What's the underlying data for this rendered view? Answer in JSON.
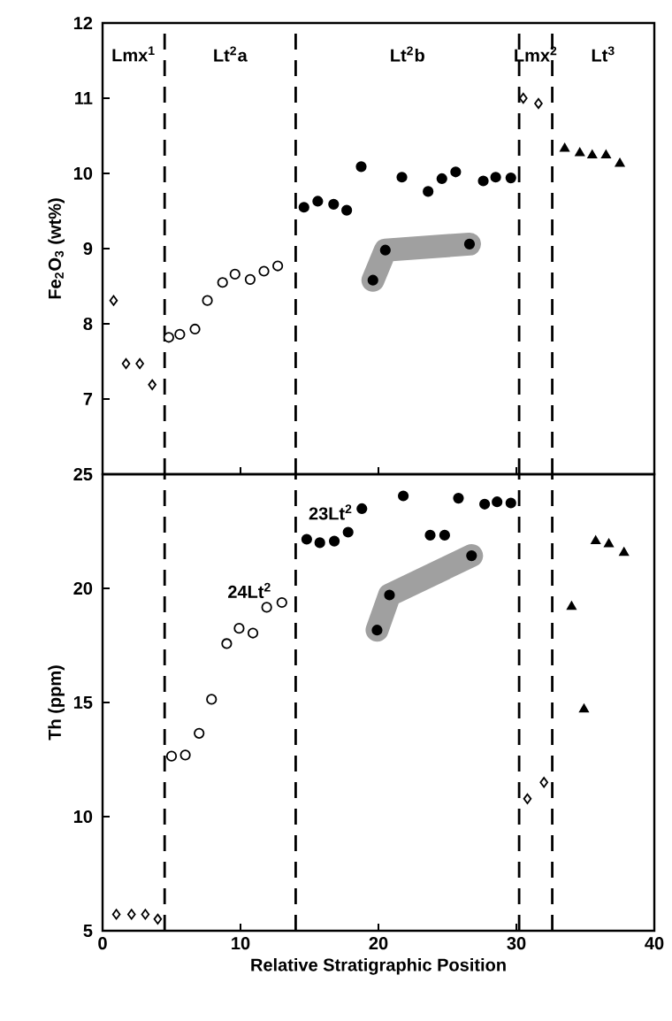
{
  "chart_data": [
    {
      "type": "scatter",
      "ylabel": "Fe$_{2}$O$_{3}$ (wt%)",
      "xlim": [
        0,
        40
      ],
      "xticks": [
        0,
        10,
        20,
        30,
        40
      ],
      "ylim": [
        6,
        12
      ],
      "yticks": [
        7,
        8,
        9,
        10,
        11,
        12
      ],
      "tick_labels": "y",
      "series": [
        {
          "color": "#ffffff",
          "marker": "diamond",
          "x": [
            0.8,
            1.7,
            2.7,
            3.6
          ],
          "values": [
            8.31,
            7.47,
            7.47,
            7.19
          ]
        },
        {
          "color": "#ffffff",
          "marker": "circle",
          "x": [
            4.8,
            5.6,
            6.7,
            7.6,
            8.7,
            9.6,
            10.7,
            11.7,
            12.7
          ],
          "values": [
            7.82,
            7.86,
            7.93,
            8.31,
            8.55,
            8.66,
            8.59,
            8.7,
            8.77
          ]
        },
        {
          "color": "#000000",
          "marker": "circle",
          "x": [
            14.6,
            15.6,
            16.75,
            17.7,
            18.75,
            21.7,
            23.6,
            24.6,
            25.6,
            27.6,
            28.5,
            29.6
          ],
          "values": [
            9.55,
            9.63,
            9.59,
            9.51,
            10.09,
            9.95,
            9.76,
            9.93,
            10.02,
            9.9,
            9.95,
            9.94
          ]
        },
        {
          "color": "#000000",
          "marker": "circle",
          "x": [
            19.6,
            20.5,
            26.6
          ],
          "values": [
            8.58,
            8.98,
            9.06
          ]
        },
        {
          "color": "#ffffff",
          "marker": "diamond",
          "x": [
            30.5,
            31.6
          ],
          "values": [
            11.0,
            10.93
          ]
        },
        {
          "color": "#000000",
          "marker": "triangle",
          "x": [
            33.5,
            34.6,
            35.5,
            36.5,
            37.5
          ],
          "values": [
            10.33,
            10.27,
            10.24,
            10.24,
            10.13
          ]
        }
      ],
      "ref_lines": [
        {
          "axis": "x",
          "value": 4.5,
          "line_style": "dashed"
        },
        {
          "axis": "x",
          "value": 14,
          "line_style": "dashed"
        },
        {
          "axis": "x",
          "value": 30.2,
          "line_style": "dashed"
        },
        {
          "axis": "x",
          "value": 32.6,
          "line_style": "dashed"
        }
      ],
      "annotations": [
        "Lmx$^{1}$",
        "Lt$^{2}$a",
        "Lt$^{2}$b",
        "Lmx$^{2}$",
        "Lt$^{3}$"
      ]
    },
    {
      "type": "scatter",
      "xlabel": "Relative Stratigraphic Position",
      "ylabel": "Th (ppm)",
      "xlim": [
        0,
        40
      ],
      "xticks": [
        0,
        10,
        20,
        30,
        40
      ],
      "ylim": [
        5,
        25
      ],
      "yticks": [
        5,
        10,
        15,
        20,
        25
      ],
      "series": [
        {
          "color": "#ffffff",
          "marker": "diamond",
          "x": [
            1.0,
            2.1,
            3.1,
            4.0
          ],
          "values": [
            5.72,
            5.72,
            5.72,
            5.51
          ]
        },
        {
          "color": "#ffffff",
          "marker": "circle",
          "x": [
            5.0,
            6.0,
            7.0,
            7.9,
            9.0,
            9.9,
            10.9,
            11.9,
            13.0
          ],
          "values": [
            12.65,
            12.7,
            13.65,
            15.14,
            17.58,
            18.25,
            18.04,
            19.17,
            19.38
          ]
        },
        {
          "color": "#000000",
          "marker": "circle",
          "x": [
            14.8,
            15.75,
            16.8,
            17.8,
            18.8,
            21.8,
            23.75,
            24.8,
            25.8,
            27.7,
            28.6,
            29.6
          ],
          "values": [
            22.15,
            22.0,
            22.07,
            22.46,
            23.49,
            24.05,
            22.33,
            22.33,
            23.95,
            23.69,
            23.79,
            23.74
          ]
        },
        {
          "color": "#000000",
          "marker": "circle",
          "x": [
            19.9,
            20.8,
            26.75
          ],
          "values": [
            18.17,
            19.71,
            21.43
          ]
        },
        {
          "color": "#ffffff",
          "marker": "diamond",
          "x": [
            30.8,
            32.0
          ],
          "values": [
            10.78,
            11.5
          ]
        },
        {
          "color": "#000000",
          "marker": "triangle",
          "x": [
            34.0,
            34.9,
            35.75,
            36.7,
            37.8
          ],
          "values": [
            19.2,
            14.7,
            22.07,
            21.94,
            21.56
          ]
        }
      ],
      "ref_lines": [
        {
          "axis": "x",
          "value": 4.5,
          "line_style": "dashed"
        },
        {
          "axis": "x",
          "value": 14,
          "line_style": "dashed"
        },
        {
          "axis": "x",
          "value": 30.2,
          "line_style": "dashed"
        },
        {
          "axis": "x",
          "value": 32.6,
          "line_style": "dashed"
        }
      ],
      "annotations": [
        {
          "text": "23Lt$^{2}$",
          "x": 18.8,
          "y": 23.49
        },
        {
          "text": "24Lt$^{2}$",
          "x": 11.9,
          "y": 19.17
        }
      ]
    }
  ]
}
